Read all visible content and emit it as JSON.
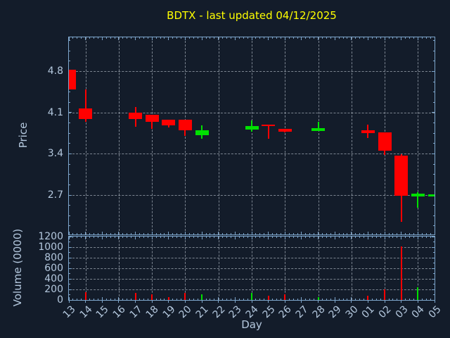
{
  "title": {
    "text": "BDTX - last updated 04/12/2025"
  },
  "price_axis": {
    "label": "Price",
    "ticks": [
      "4.8",
      "4.1",
      "3.4",
      "2.7"
    ],
    "tick_values": [
      4.8,
      4.1,
      3.4,
      2.7
    ]
  },
  "volume_axis": {
    "label": "Volume (0000)",
    "ticks": [
      "1200",
      "1000",
      "800",
      "600",
      "400",
      "200",
      "0"
    ],
    "tick_values": [
      1200,
      1000,
      800,
      600,
      400,
      200,
      0
    ]
  },
  "x_axis": {
    "label": "Day",
    "tick_labels": [
      "13",
      "14",
      "15",
      "16",
      "17",
      "18",
      "19",
      "20",
      "21",
      "22",
      "23",
      "24",
      "25",
      "26",
      "27",
      "28",
      "29",
      "30",
      "01",
      "02",
      "03",
      "04",
      "05"
    ]
  },
  "colors": {
    "background": "#131c2a",
    "spine": "#7ea6cc",
    "tick_label": "#b4c8de",
    "title": "#ffff00",
    "grid": "rgba(212,220,230,0.55)",
    "up": "#00e000",
    "down": "#ff0000"
  },
  "chart_data": [
    {
      "type": "candlestick",
      "title": "BDTX - last updated 04/12/2025",
      "xlabel": "Day",
      "ylabel": "Price",
      "categories": [
        "13",
        "14",
        "15",
        "16",
        "17",
        "18",
        "19",
        "20",
        "21",
        "22",
        "23",
        "24",
        "25",
        "26",
        "27",
        "28",
        "29",
        "30",
        "01",
        "02",
        "03",
        "04",
        "05"
      ],
      "ylim": [
        2.03,
        5.38
      ],
      "yticks": [
        4.8,
        4.1,
        3.4,
        2.7
      ],
      "grid": "dashed, horizontal at yticks and vertical at alternate days",
      "series": [
        {
          "day": "13",
          "open": 4.83,
          "high": 4.83,
          "low": 4.49,
          "close": 4.49,
          "direction": "down"
        },
        {
          "day": "14",
          "open": 4.17,
          "high": 4.49,
          "low": 3.94,
          "close": 3.99,
          "direction": "down"
        },
        {
          "day": "17",
          "open": 4.1,
          "high": 4.19,
          "low": 3.86,
          "close": 3.99,
          "direction": "down"
        },
        {
          "day": "18",
          "open": 4.06,
          "high": 4.06,
          "low": 3.82,
          "close": 3.95,
          "direction": "down"
        },
        {
          "day": "19",
          "open": 3.98,
          "high": 3.98,
          "low": 3.85,
          "close": 3.89,
          "direction": "down"
        },
        {
          "day": "20",
          "open": 3.98,
          "high": 3.98,
          "low": 3.7,
          "close": 3.8,
          "direction": "down"
        },
        {
          "day": "21",
          "open": 3.72,
          "high": 3.88,
          "low": 3.66,
          "close": 3.8,
          "direction": "up"
        },
        {
          "day": "24",
          "open": 3.81,
          "high": 3.97,
          "low": 3.78,
          "close": 3.87,
          "direction": "up"
        },
        {
          "day": "25",
          "open": 3.9,
          "high": 3.9,
          "low": 3.66,
          "close": 3.87,
          "direction": "down"
        },
        {
          "day": "26",
          "open": 3.83,
          "high": 3.83,
          "low": 3.76,
          "close": 3.78,
          "direction": "down"
        },
        {
          "day": "28",
          "open": 3.79,
          "high": 3.94,
          "low": 3.79,
          "close": 3.84,
          "direction": "up"
        },
        {
          "day": "01",
          "open": 3.8,
          "high": 3.9,
          "low": 3.67,
          "close": 3.75,
          "direction": "down"
        },
        {
          "day": "02",
          "open": 3.77,
          "high": 3.77,
          "low": 3.38,
          "close": 3.45,
          "direction": "down"
        },
        {
          "day": "03",
          "open": 3.37,
          "high": 3.39,
          "low": 2.24,
          "close": 2.69,
          "direction": "down"
        },
        {
          "day": "04",
          "open": 2.68,
          "high": 2.75,
          "low": 2.48,
          "close": 2.72,
          "direction": "up"
        },
        {
          "day": "05",
          "open": 2.68,
          "high": 2.71,
          "low": 2.68,
          "close": 2.71,
          "direction": "up"
        }
      ]
    },
    {
      "type": "bar",
      "xlabel": "Day",
      "ylabel": "Volume (0000)",
      "categories": [
        "13",
        "14",
        "15",
        "16",
        "17",
        "18",
        "19",
        "20",
        "21",
        "22",
        "23",
        "24",
        "25",
        "26",
        "27",
        "28",
        "29",
        "30",
        "01",
        "02",
        "03",
        "04",
        "05"
      ],
      "ylim": [
        0,
        1200
      ],
      "yticks": [
        0,
        200,
        400,
        600,
        800,
        1000,
        1200
      ],
      "values": [
        {
          "day": "14",
          "volume": 150,
          "direction": "down"
        },
        {
          "day": "17",
          "volume": 140,
          "direction": "down"
        },
        {
          "day": "18",
          "volume": 110,
          "direction": "down"
        },
        {
          "day": "19",
          "volume": 55,
          "direction": "down"
        },
        {
          "day": "20",
          "volume": 130,
          "direction": "down"
        },
        {
          "day": "21",
          "volume": 110,
          "direction": "up"
        },
        {
          "day": "24",
          "volume": 140,
          "direction": "up"
        },
        {
          "day": "25",
          "volume": 80,
          "direction": "down"
        },
        {
          "day": "26",
          "volume": 110,
          "direction": "down"
        },
        {
          "day": "28",
          "volume": 60,
          "direction": "up"
        },
        {
          "day": "01",
          "volume": 80,
          "direction": "down"
        },
        {
          "day": "02",
          "volume": 195,
          "direction": "down"
        },
        {
          "day": "03",
          "volume": 1020,
          "direction": "down"
        },
        {
          "day": "04",
          "volume": 245,
          "direction": "up"
        }
      ]
    }
  ]
}
